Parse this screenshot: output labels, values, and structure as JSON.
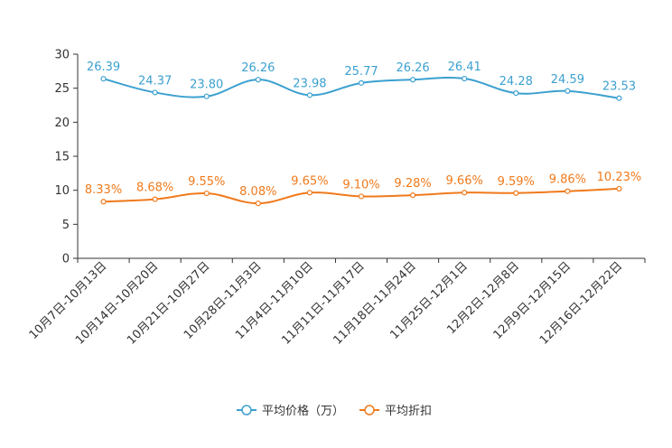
{
  "chart_data": {
    "type": "line",
    "title": "",
    "xlabel": "",
    "ylabel": "",
    "ylim": [
      0,
      30
    ],
    "yticks": [
      0,
      5,
      10,
      15,
      20,
      25,
      30
    ],
    "grid": false,
    "legend_position": "bottom-center",
    "categories": [
      "10月7日-10月13日",
      "10月14日-10月20日",
      "10月21日-10月27日",
      "10月28日-11月3日",
      "11月4日-11月10日",
      "11月11日-11月17日",
      "11月18日-11月24日",
      "11月25日-12月1日",
      "12月2日-12月8日",
      "12月9日-12月15日",
      "12月16日-12月22日"
    ],
    "series": [
      {
        "name": "平均价格（万）",
        "color": "#3ca0d0",
        "values": [
          26.39,
          24.37,
          23.8,
          26.26,
          23.98,
          25.77,
          26.26,
          26.41,
          24.28,
          24.59,
          23.53
        ],
        "labels": [
          "26.39",
          "24.37",
          "23.80",
          "26.26",
          "23.98",
          "25.77",
          "26.26",
          "26.41",
          "24.28",
          "24.59",
          "23.53"
        ]
      },
      {
        "name": "平均折扣",
        "color": "#f07a1c",
        "values": [
          8.33,
          8.68,
          9.55,
          8.08,
          9.65,
          9.1,
          9.28,
          9.66,
          9.59,
          9.86,
          10.23
        ],
        "labels": [
          "8.33%",
          "8.68%",
          "9.55%",
          "8.08%",
          "9.65%",
          "9.10%",
          "9.28%",
          "9.66%",
          "9.59%",
          "9.86%",
          "10.23%"
        ]
      }
    ]
  }
}
